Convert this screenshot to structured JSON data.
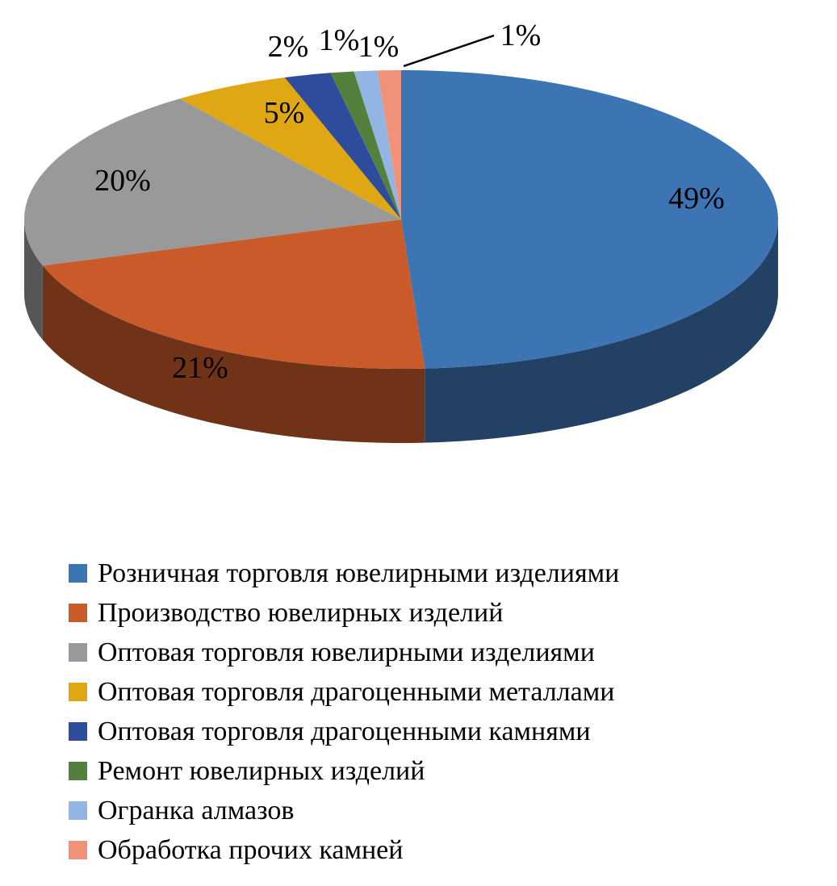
{
  "chart_data": {
    "type": "pie",
    "effect": "3d",
    "start_angle_deg": 0,
    "direction": "clockwise",
    "legend_position": "bottom",
    "title": "",
    "labels": [
      "Розничная торговля ювелирными изделиями",
      "Производство ювелирных изделий",
      "Оптовая торговля ювелирными изделиями",
      "Оптовая торговля драгоценными металлами",
      "Оптовая торговля драгоценными камнями",
      "Ремонт ювелирных изделий",
      "Огранка алмазов",
      "Обработка прочих камней"
    ],
    "values": [
      49,
      21,
      20,
      5,
      2,
      1,
      1,
      1
    ],
    "percent_labels": [
      "49%",
      "21%",
      "20%",
      "5%",
      "2%",
      "1%",
      "1%",
      "1%"
    ],
    "colors": [
      "#3D74B3",
      "#C95B2A",
      "#999999",
      "#DFA713",
      "#2E4C9C",
      "#53803C",
      "#93B5E3",
      "#F09179"
    ]
  }
}
